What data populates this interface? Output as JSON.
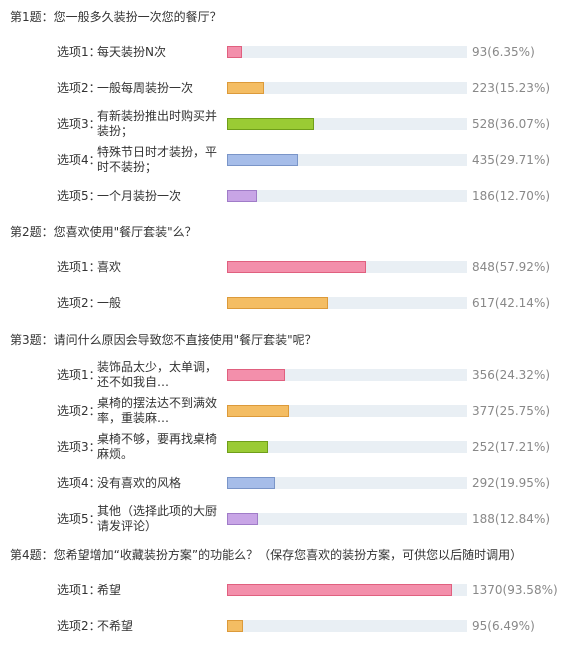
{
  "colors": [
    "#f38fab",
    "#f4bd63",
    "#9acb34",
    "#a6bde9",
    "#c8a5e6"
  ],
  "borders": [
    "#e0607f",
    "#dc9a3a",
    "#6f9e1a",
    "#7a95c8",
    "#a07cc8"
  ],
  "questions": [
    {
      "title": "第1题：您一般多久装扮一次您的餐厅？",
      "options": [
        {
          "prefix": "选项1：",
          "label": "每天装扮N次",
          "percent": 6.35,
          "result": "93(6.35%)"
        },
        {
          "prefix": "选项2：",
          "label": "一般每周装扮一次",
          "percent": 15.23,
          "result": "223(15.23%)"
        },
        {
          "prefix": "选项3：",
          "label": "有新装扮推出时购买并装扮；",
          "percent": 36.07,
          "result": "528(36.07%)"
        },
        {
          "prefix": "选项4：",
          "label": "特殊节日时才装扮，平时不装扮；",
          "percent": 29.71,
          "result": "435(29.71%)"
        },
        {
          "prefix": "选项5：",
          "label": "一个月装扮一次",
          "percent": 12.7,
          "result": "186(12.70%)"
        }
      ]
    },
    {
      "title": "第2题：您喜欢使用\"餐厅套装\"么？",
      "options": [
        {
          "prefix": "选项1：",
          "label": "喜欢",
          "percent": 57.92,
          "result": "848(57.92%)"
        },
        {
          "prefix": "选项2：",
          "label": "一般",
          "percent": 42.14,
          "result": "617(42.14%)"
        }
      ]
    },
    {
      "title": "第3题：请问什么原因会导致您不直接使用\"餐厅套装\"呢？",
      "options": [
        {
          "prefix": "选项1：",
          "label": "装饰品太少，太单调，还不如我自…",
          "percent": 24.32,
          "result": "356(24.32%)"
        },
        {
          "prefix": "选项2：",
          "label": "桌椅的摆法达不到满效率，重装麻…",
          "percent": 25.75,
          "result": "377(25.75%)"
        },
        {
          "prefix": "选项3：",
          "label": "桌椅不够，要再找桌椅麻烦。",
          "percent": 17.21,
          "result": "252(17.21%)"
        },
        {
          "prefix": "选项4：",
          "label": "没有喜欢的风格",
          "percent": 19.95,
          "result": "292(19.95%)"
        },
        {
          "prefix": "选项5：",
          "label": "其他（选择此项的大厨请发评论）",
          "percent": 12.84,
          "result": "188(12.84%)"
        }
      ]
    },
    {
      "title": "第4题：您希望增加“收藏装扮方案”的功能么？（保存您喜欢的装扮方案，可供您以后随时调用）",
      "options": [
        {
          "prefix": "选项1：",
          "label": "希望",
          "percent": 93.58,
          "result": "1370(93.58%)"
        },
        {
          "prefix": "选项2：",
          "label": "不希望",
          "percent": 6.49,
          "result": "95(6.49%)"
        }
      ]
    }
  ]
}
